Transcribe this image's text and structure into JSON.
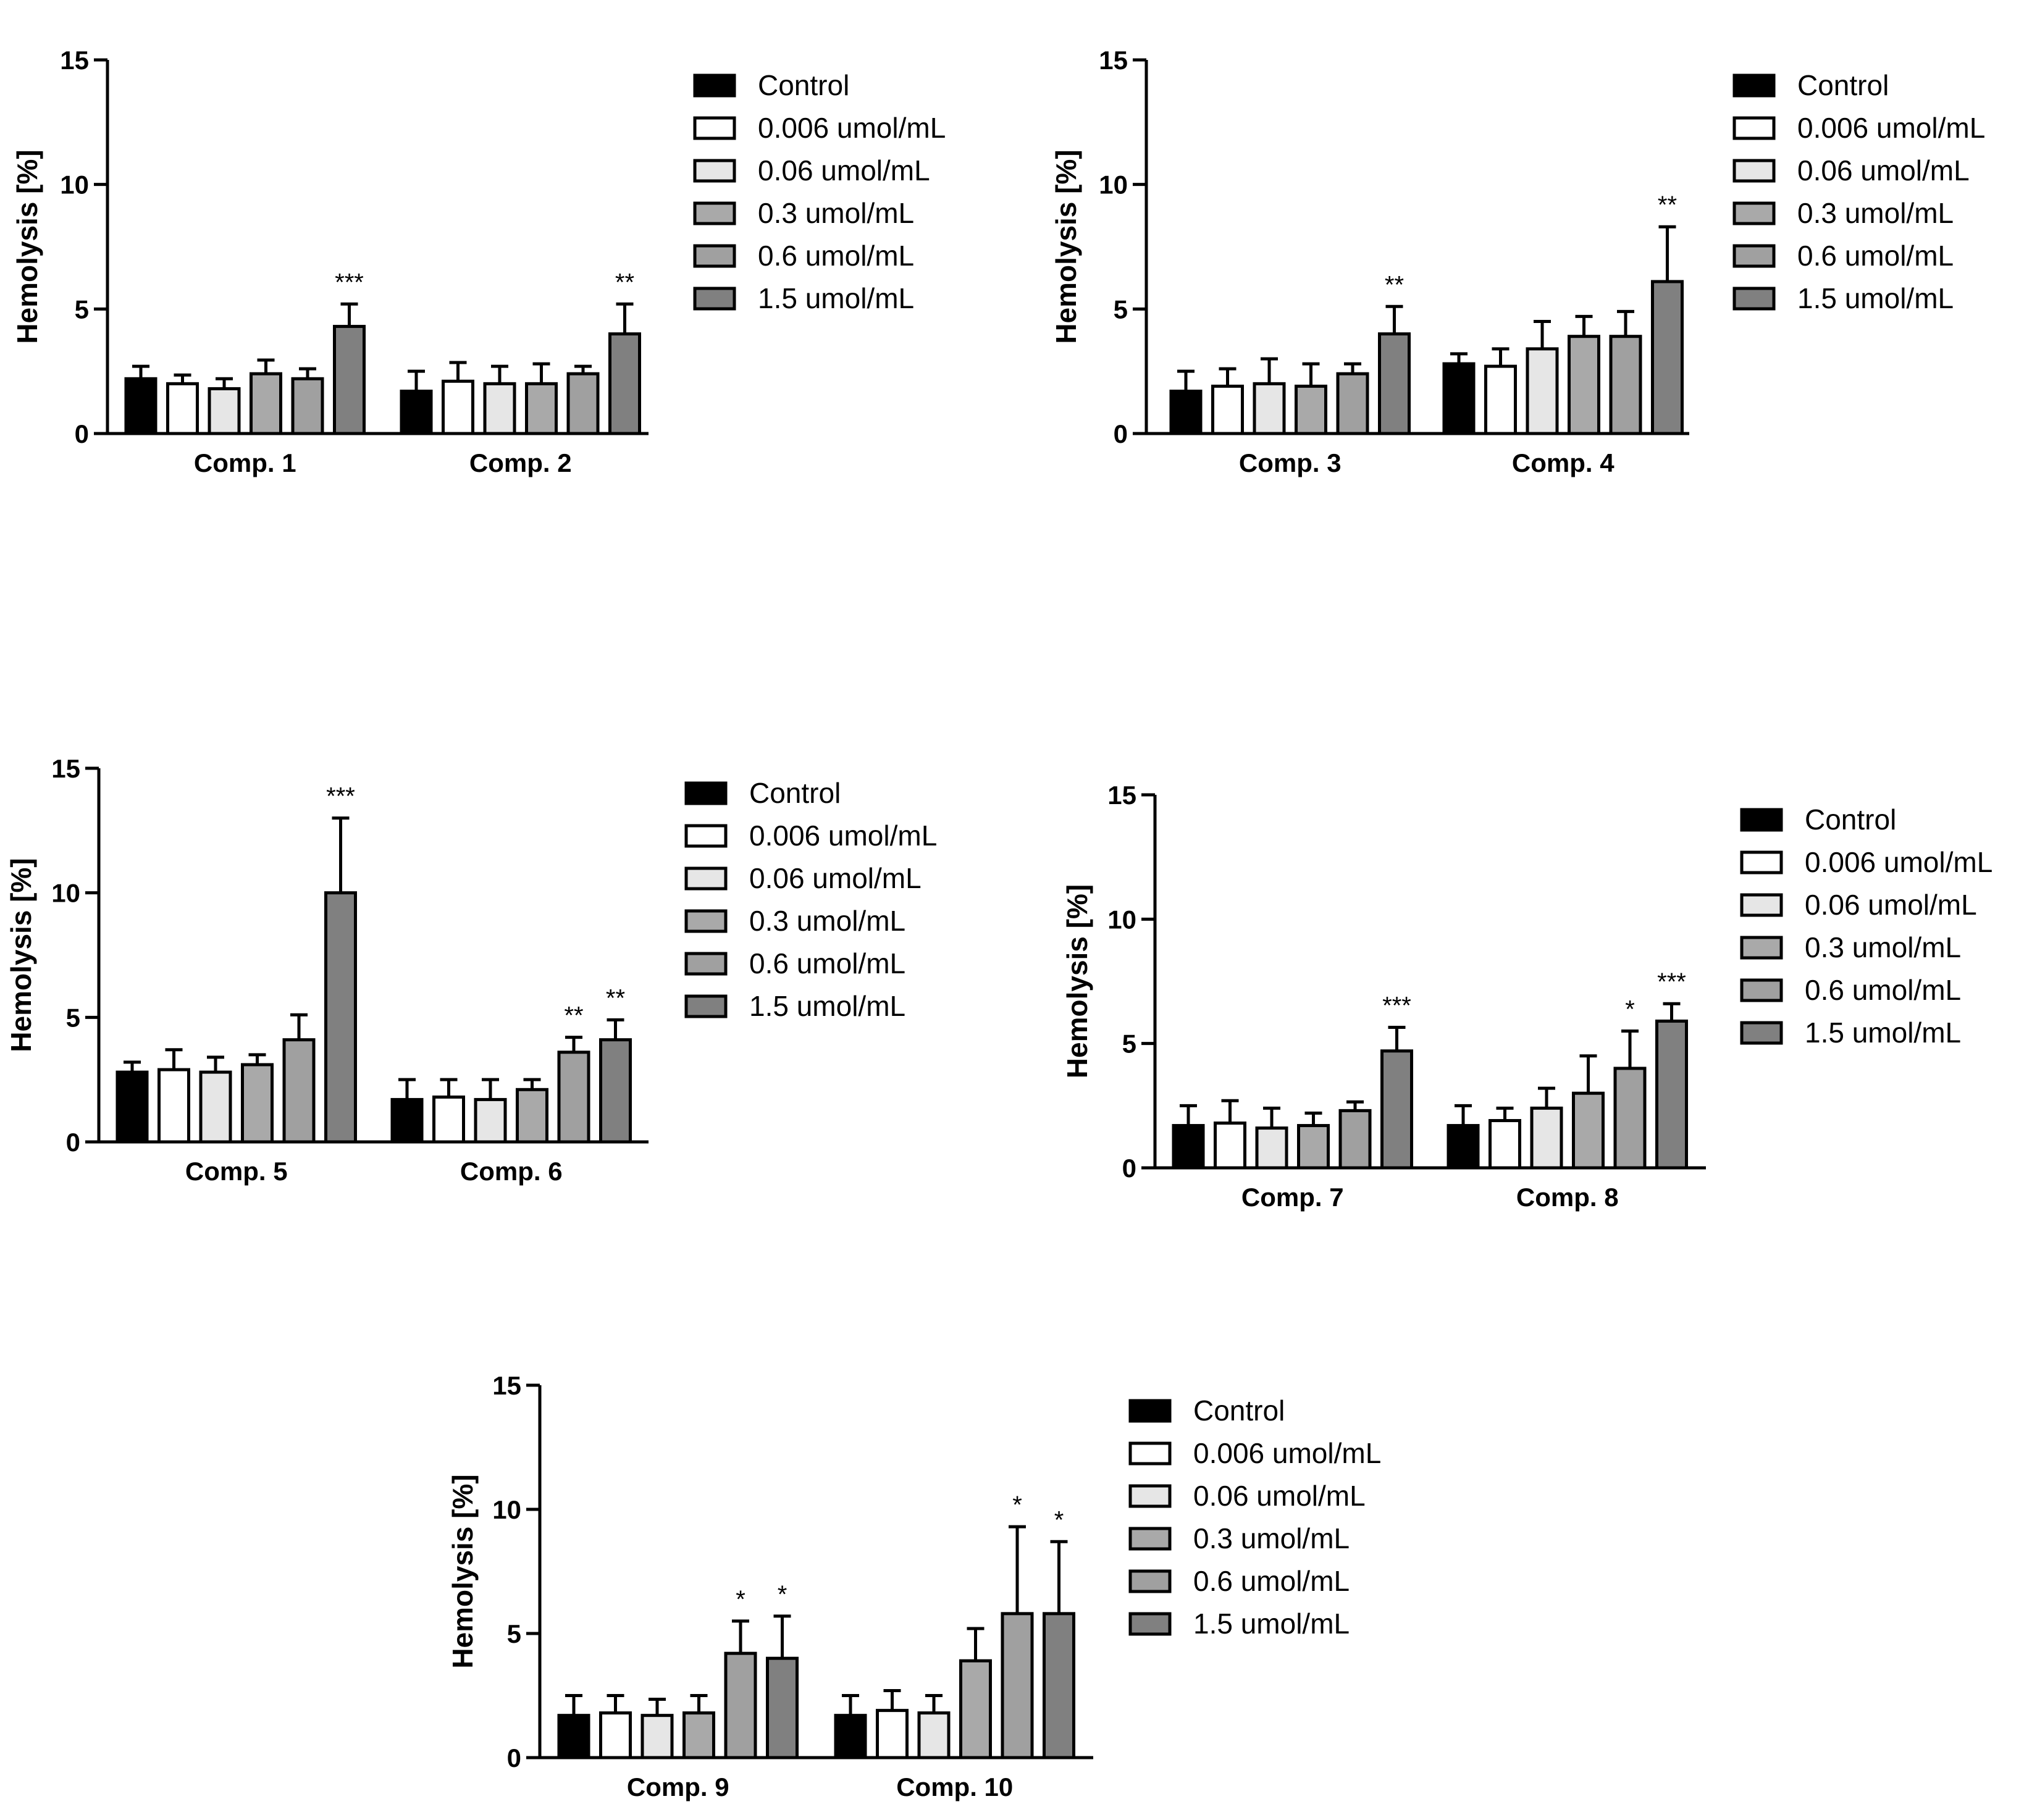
{
  "colors": {
    "Control": "#000000",
    "0.006 umol/mL": "#ffffff",
    "0.06 umol/mL": "#e6e6e6",
    "0.3 umol/mL": "#a9a9a9",
    "0.6 umol/mL": "#a0a0a0",
    "1.5 umol/mL": "#808080"
  },
  "chart_data": [
    {
      "type": "bar",
      "ylabel": "Hemolysis [%]",
      "ylim": [
        0,
        15
      ],
      "yticks": [
        "0",
        "5",
        "10",
        "15"
      ],
      "legend": [
        "Control",
        "0.006 umol/mL",
        "0.06 umol/mL",
        "0.3 umol/mL",
        "0.6 umol/mL",
        "1.5 umol/mL"
      ],
      "categories": [
        "Comp. 1",
        "Comp. 2"
      ],
      "series": [
        {
          "name": "Control",
          "values": [
            2.2,
            1.7
          ],
          "errors": [
            0.5,
            0.8
          ],
          "sig": [
            "",
            ""
          ]
        },
        {
          "name": "0.006 umol/mL",
          "values": [
            2.0,
            2.1
          ],
          "errors": [
            0.35,
            0.75
          ],
          "sig": [
            "",
            ""
          ]
        },
        {
          "name": "0.06 umol/mL",
          "values": [
            1.8,
            2.0
          ],
          "errors": [
            0.4,
            0.7
          ],
          "sig": [
            "",
            ""
          ]
        },
        {
          "name": "0.3 umol/mL",
          "values": [
            2.4,
            2.0
          ],
          "errors": [
            0.55,
            0.8
          ],
          "sig": [
            "",
            ""
          ]
        },
        {
          "name": "0.6 umol/mL",
          "values": [
            2.2,
            2.4
          ],
          "errors": [
            0.4,
            0.3
          ],
          "sig": [
            "",
            ""
          ]
        },
        {
          "name": "1.5 umol/mL",
          "values": [
            4.3,
            4.0
          ],
          "errors": [
            0.9,
            1.2
          ],
          "sig": [
            "***",
            "**"
          ]
        }
      ]
    },
    {
      "type": "bar",
      "ylabel": "Hemolysis [%]",
      "ylim": [
        0,
        15
      ],
      "yticks": [
        "0",
        "5",
        "10",
        "15"
      ],
      "legend": [
        "Control",
        "0.006 umol/mL",
        "0.06 umol/mL",
        "0.3 umol/mL",
        "0.6 umol/mL",
        "1.5 umol/mL"
      ],
      "categories": [
        "Comp. 3",
        "Comp. 4"
      ],
      "series": [
        {
          "name": "Control",
          "values": [
            1.7,
            2.8
          ],
          "errors": [
            0.8,
            0.4
          ],
          "sig": [
            "",
            ""
          ]
        },
        {
          "name": "0.006 umol/mL",
          "values": [
            1.9,
            2.7
          ],
          "errors": [
            0.7,
            0.7
          ],
          "sig": [
            "",
            ""
          ]
        },
        {
          "name": "0.06 umol/mL",
          "values": [
            2.0,
            3.4
          ],
          "errors": [
            1.0,
            1.1
          ],
          "sig": [
            "",
            ""
          ]
        },
        {
          "name": "0.3 umol/mL",
          "values": [
            1.9,
            3.9
          ],
          "errors": [
            0.9,
            0.8
          ],
          "sig": [
            "",
            ""
          ]
        },
        {
          "name": "0.6 umol/mL",
          "values": [
            2.4,
            3.9
          ],
          "errors": [
            0.4,
            1.0
          ],
          "sig": [
            "",
            ""
          ]
        },
        {
          "name": "1.5 umol/mL",
          "values": [
            4.0,
            6.1
          ],
          "errors": [
            1.1,
            2.2
          ],
          "sig": [
            "**",
            "**"
          ]
        }
      ]
    },
    {
      "type": "bar",
      "ylabel": "Hemolysis [%]",
      "ylim": [
        0,
        15
      ],
      "yticks": [
        "0",
        "5",
        "10",
        "15"
      ],
      "legend": [
        "Control",
        "0.006 umol/mL",
        "0.06 umol/mL",
        "0.3 umol/mL",
        "0.6 umol/mL",
        "1.5 umol/mL"
      ],
      "categories": [
        "Comp. 5",
        "Comp. 6"
      ],
      "series": [
        {
          "name": "Control",
          "values": [
            2.8,
            1.7
          ],
          "errors": [
            0.4,
            0.8
          ],
          "sig": [
            "",
            ""
          ]
        },
        {
          "name": "0.006 umol/mL",
          "values": [
            2.9,
            1.8
          ],
          "errors": [
            0.8,
            0.7
          ],
          "sig": [
            "",
            ""
          ]
        },
        {
          "name": "0.06 umol/mL",
          "values": [
            2.8,
            1.7
          ],
          "errors": [
            0.6,
            0.8
          ],
          "sig": [
            "",
            ""
          ]
        },
        {
          "name": "0.3 umol/mL",
          "values": [
            3.1,
            2.1
          ],
          "errors": [
            0.4,
            0.4
          ],
          "sig": [
            "",
            ""
          ]
        },
        {
          "name": "0.6 umol/mL",
          "values": [
            4.1,
            3.6
          ],
          "errors": [
            1.0,
            0.6
          ],
          "sig": [
            "",
            "**"
          ]
        },
        {
          "name": "1.5 umol/mL",
          "values": [
            10.0,
            4.1
          ],
          "errors": [
            3.0,
            0.8
          ],
          "sig": [
            "***",
            "**"
          ]
        }
      ]
    },
    {
      "type": "bar",
      "ylabel": "Hemolysis [%]",
      "ylim": [
        0,
        15
      ],
      "yticks": [
        "0",
        "5",
        "10",
        "15"
      ],
      "legend": [
        "Control",
        "0.006 umol/mL",
        "0.06 umol/mL",
        "0.3 umol/mL",
        "0.6 umol/mL",
        "1.5 umol/mL"
      ],
      "categories": [
        "Comp. 7",
        "Comp. 8"
      ],
      "series": [
        {
          "name": "Control",
          "values": [
            1.7,
            1.7
          ],
          "errors": [
            0.8,
            0.8
          ],
          "sig": [
            "",
            ""
          ]
        },
        {
          "name": "0.006 umol/mL",
          "values": [
            1.8,
            1.9
          ],
          "errors": [
            0.9,
            0.5
          ],
          "sig": [
            "",
            ""
          ]
        },
        {
          "name": "0.06 umol/mL",
          "values": [
            1.6,
            2.4
          ],
          "errors": [
            0.8,
            0.8
          ],
          "sig": [
            "",
            ""
          ]
        },
        {
          "name": "0.3 umol/mL",
          "values": [
            1.7,
            3.0
          ],
          "errors": [
            0.5,
            1.5
          ],
          "sig": [
            "",
            ""
          ]
        },
        {
          "name": "0.6 umol/mL",
          "values": [
            2.3,
            4.0
          ],
          "errors": [
            0.35,
            1.5
          ],
          "sig": [
            "",
            "*"
          ]
        },
        {
          "name": "1.5 umol/mL",
          "values": [
            4.7,
            5.9
          ],
          "errors": [
            0.95,
            0.7
          ],
          "sig": [
            "***",
            "***"
          ]
        }
      ]
    },
    {
      "type": "bar",
      "ylabel": "Hemolysis [%]",
      "ylim": [
        0,
        15
      ],
      "yticks": [
        "0",
        "5",
        "10",
        "15"
      ],
      "legend": [
        "Control",
        "0.006 umol/mL",
        "0.06 umol/mL",
        "0.3 umol/mL",
        "0.6 umol/mL",
        "1.5 umol/mL"
      ],
      "categories": [
        "Comp. 9",
        "Comp. 10"
      ],
      "series": [
        {
          "name": "Control",
          "values": [
            1.7,
            1.7
          ],
          "errors": [
            0.8,
            0.8
          ],
          "sig": [
            "",
            ""
          ]
        },
        {
          "name": "0.006 umol/mL",
          "values": [
            1.8,
            1.9
          ],
          "errors": [
            0.7,
            0.8
          ],
          "sig": [
            "",
            ""
          ]
        },
        {
          "name": "0.06 umol/mL",
          "values": [
            1.7,
            1.8
          ],
          "errors": [
            0.65,
            0.7
          ],
          "sig": [
            "",
            ""
          ]
        },
        {
          "name": "0.3 umol/mL",
          "values": [
            1.8,
            3.9
          ],
          "errors": [
            0.7,
            1.3
          ],
          "sig": [
            "",
            ""
          ]
        },
        {
          "name": "0.6 umol/mL",
          "values": [
            4.2,
            5.8
          ],
          "errors": [
            1.3,
            3.5
          ],
          "sig": [
            "*",
            "*"
          ]
        },
        {
          "name": "1.5 umol/mL",
          "values": [
            4.0,
            5.8
          ],
          "errors": [
            1.7,
            2.9
          ],
          "sig": [
            "*",
            "*"
          ]
        }
      ]
    }
  ]
}
